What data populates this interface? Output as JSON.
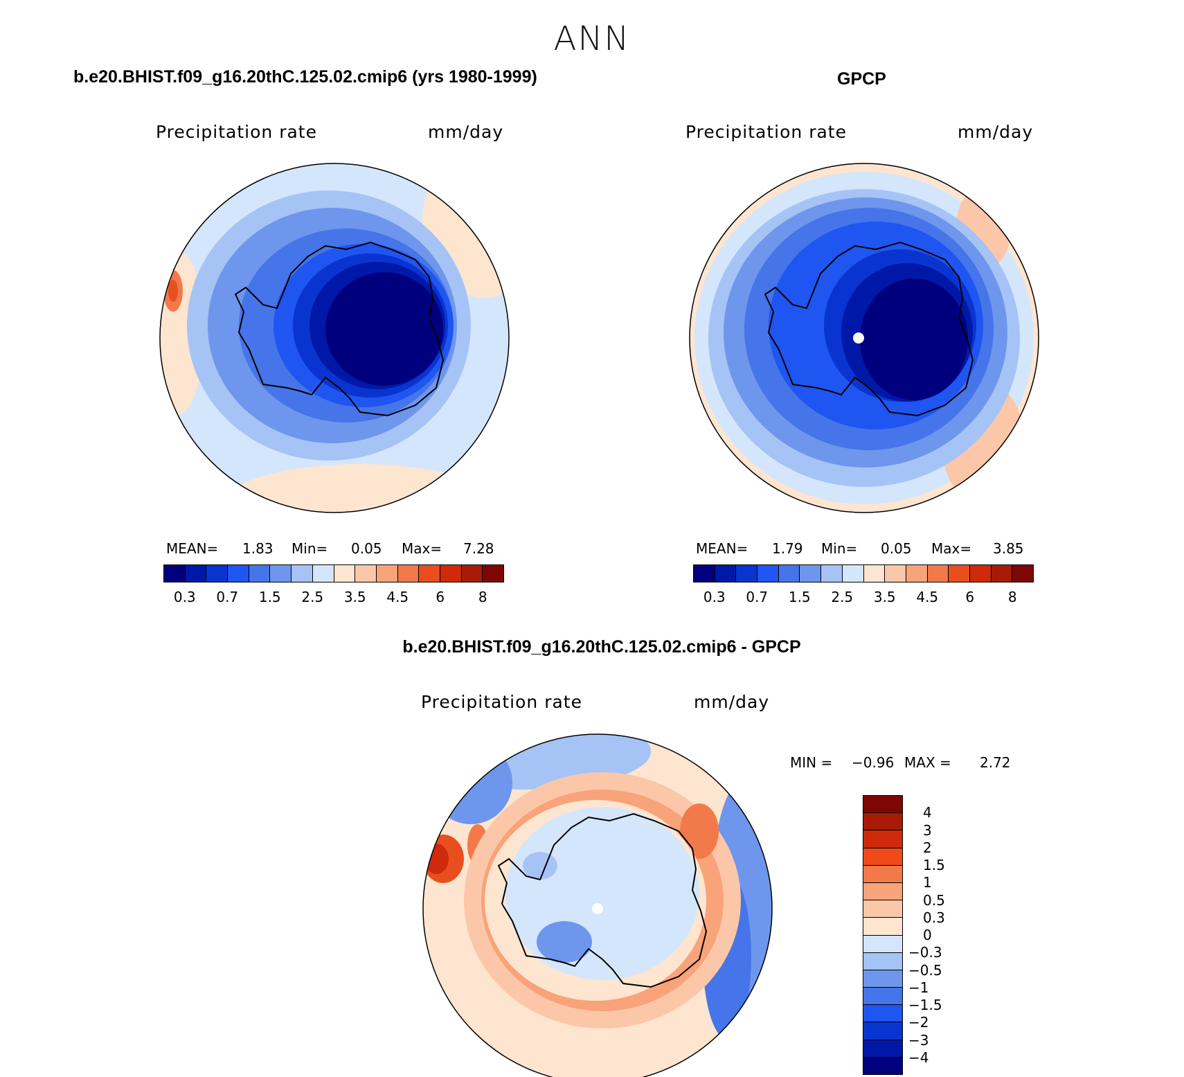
{
  "figure": {
    "season_title": "ANN"
  },
  "panels": {
    "model": {
      "title": "b.e20.BHIST.f09_g16.20thC.125.02.cmip6 (yrs 1980-1999)",
      "variable": "Precipitation rate",
      "units": "mm/day",
      "stats": {
        "mean_label": "MEAN=",
        "mean": "1.83",
        "min_label": "Min=",
        "min": "0.05",
        "max_label": "Max=",
        "max": "7.28"
      }
    },
    "obs": {
      "title": "GPCP",
      "variable": "Precipitation rate",
      "units": "mm/day",
      "stats": {
        "mean_label": "MEAN=",
        "mean": "1.79",
        "min_label": "Min=",
        "min": "0.05",
        "max_label": "Max=",
        "max": "3.85"
      }
    },
    "diff": {
      "title": "b.e20.BHIST.f09_g16.20thC.125.02.cmip6 - GPCP",
      "variable": "Precipitation rate",
      "units": "mm/day",
      "stats": {
        "min_label": "MIN =",
        "min": "−0.96",
        "max_label": "MAX =",
        "max": "2.72"
      }
    }
  },
  "colorbars": {
    "abs": {
      "colors": [
        "#00007f",
        "#0018a8",
        "#0a34d0",
        "#1f55f0",
        "#4575e8",
        "#6e96ec",
        "#a6c3f5",
        "#d4e6fb",
        "#fde5d0",
        "#fcc7a8",
        "#f8a37a",
        "#f27a4a",
        "#e94f1e",
        "#cf2a0b",
        "#a81b06",
        "#7e0603"
      ],
      "tick_labels": [
        "0.3",
        "0.7",
        "1.5",
        "2.5",
        "3.5",
        "4.5",
        "6",
        "8"
      ]
    },
    "diff": {
      "colors": [
        "#7e0603",
        "#a81b06",
        "#cf2a0b",
        "#f04a1a",
        "#f27a4a",
        "#f8a37a",
        "#fcc7a8",
        "#fde5d0",
        "#d4e6fb",
        "#a6c3f5",
        "#6e96ec",
        "#4575e8",
        "#1f55f0",
        "#0a34d0",
        "#0018a8",
        "#00007f"
      ],
      "tick_labels": [
        "4",
        "3",
        "2",
        "1.5",
        "1",
        "0.5",
        "0.3",
        "0",
        "−0.3",
        "−0.5",
        "−1",
        "−1.5",
        "−2",
        "−3",
        "−4"
      ]
    }
  },
  "map_icons": {
    "projection": "south-polar-stereographic",
    "pole_marker": "white-dot"
  }
}
